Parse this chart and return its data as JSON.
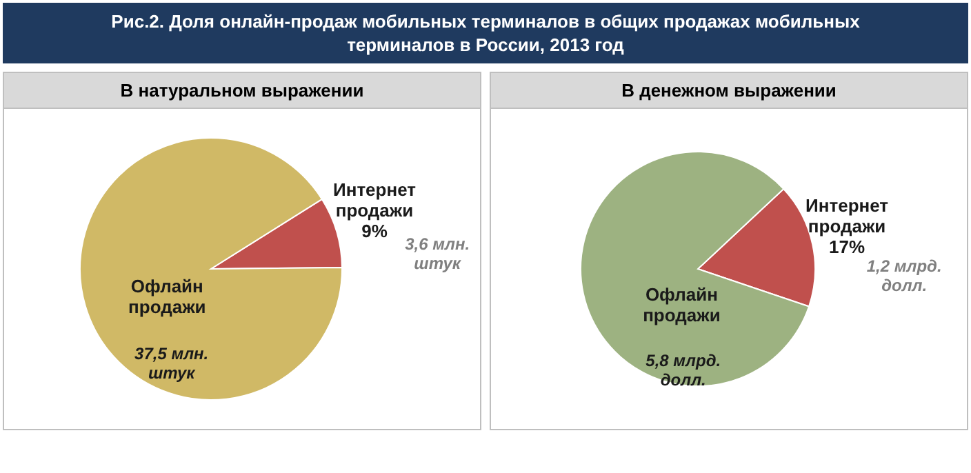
{
  "chart_data": [
    {
      "type": "other",
      "title": "Рис.2. Доля онлайн-продаж мобильных терминалов в общих продажах мобильных терминалов в России, 2013 год"
    },
    {
      "type": "pie",
      "title": "В натуральном выражении",
      "categories": [
        "Интернет продажи",
        "Офлайн продажи"
      ],
      "values": [
        3.6,
        37.5
      ],
      "value_labels": [
        "3,6 млн. штук",
        "37,5 млн. штук"
      ],
      "colors": [
        "#c0504d",
        "#d0b966"
      ],
      "annotations": [
        "9%"
      ]
    },
    {
      "type": "pie",
      "title": "В денежном выражении",
      "categories": [
        "Интернет продажи",
        "Офлайн продажи"
      ],
      "values": [
        1.2,
        5.8
      ],
      "value_labels": [
        "1,2 млрд. долл.",
        "5,8 млрд. долл."
      ],
      "colors": [
        "#c0504d",
        "#9db281"
      ],
      "annotations": [
        "17%"
      ]
    }
  ]
}
